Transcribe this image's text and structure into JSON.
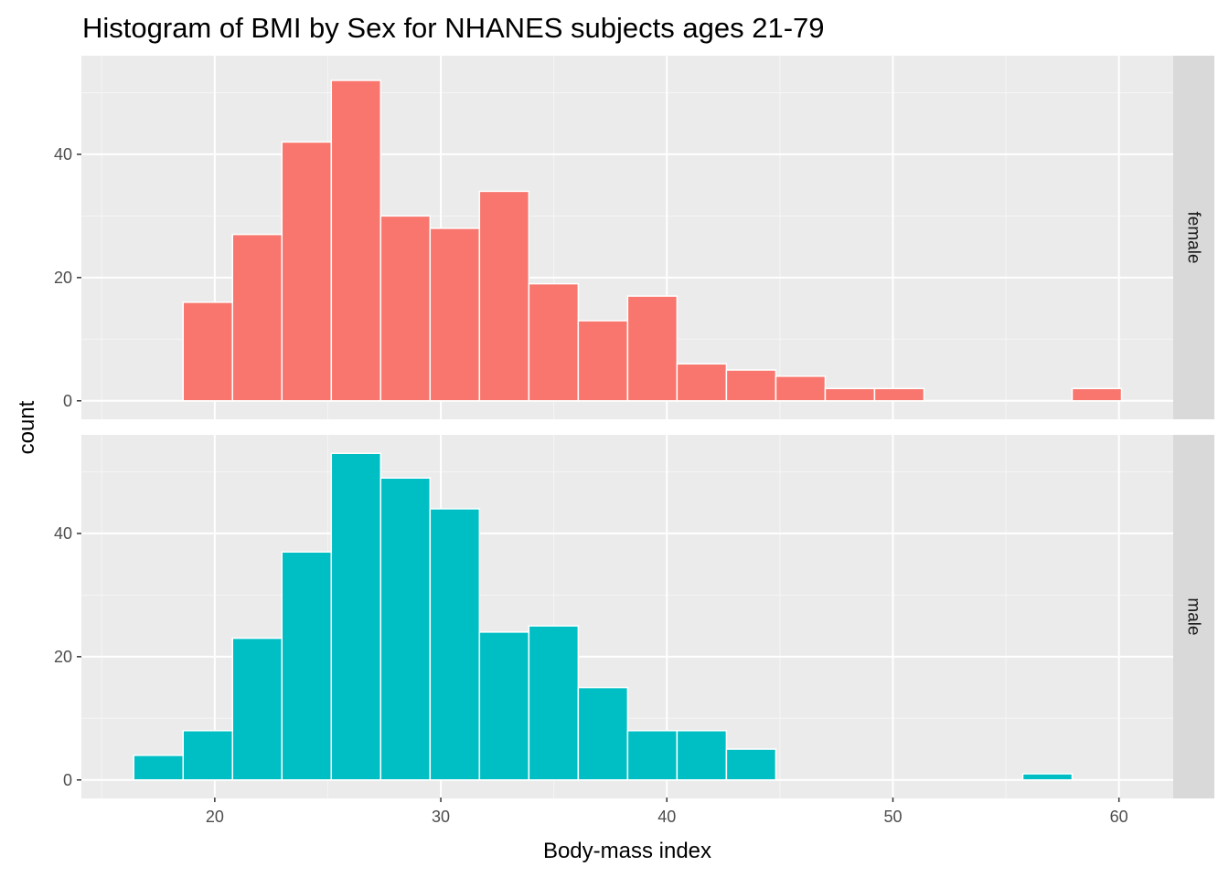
{
  "chart_data": {
    "type": "bar",
    "title": "Histogram of BMI by Sex for NHANES subjects ages 21-79",
    "xlabel": "Body-mass index",
    "ylabel": "count",
    "xlim": [
      14.1,
      62.4
    ],
    "ylim": [
      -3,
      56
    ],
    "x_ticks": [
      20,
      30,
      40,
      50,
      60
    ],
    "y_ticks": [
      0,
      20,
      40
    ],
    "bin_width": 2.185,
    "grid": true,
    "facets": [
      {
        "name": "female",
        "color": "#F8766D",
        "bins": [
          {
            "x0": 18.6,
            "count": 16
          },
          {
            "x0": 20.785,
            "count": 27
          },
          {
            "x0": 22.97,
            "count": 42
          },
          {
            "x0": 25.155,
            "count": 52
          },
          {
            "x0": 27.34,
            "count": 30
          },
          {
            "x0": 29.525,
            "count": 28
          },
          {
            "x0": 31.71,
            "count": 34
          },
          {
            "x0": 33.895,
            "count": 19
          },
          {
            "x0": 36.08,
            "count": 13
          },
          {
            "x0": 38.265,
            "count": 17
          },
          {
            "x0": 40.45,
            "count": 6
          },
          {
            "x0": 42.635,
            "count": 5
          },
          {
            "x0": 44.82,
            "count": 4
          },
          {
            "x0": 47.005,
            "count": 2
          },
          {
            "x0": 49.19,
            "count": 2
          },
          {
            "x0": 51.375,
            "count": 0
          },
          {
            "x0": 53.56,
            "count": 0
          },
          {
            "x0": 55.745,
            "count": 0
          },
          {
            "x0": 57.93,
            "count": 2
          }
        ]
      },
      {
        "name": "male",
        "color": "#00BFC4",
        "bins": [
          {
            "x0": 16.415,
            "count": 4
          },
          {
            "x0": 18.6,
            "count": 8
          },
          {
            "x0": 20.785,
            "count": 23
          },
          {
            "x0": 22.97,
            "count": 37
          },
          {
            "x0": 25.155,
            "count": 53
          },
          {
            "x0": 27.34,
            "count": 49
          },
          {
            "x0": 29.525,
            "count": 44
          },
          {
            "x0": 31.71,
            "count": 24
          },
          {
            "x0": 33.895,
            "count": 25
          },
          {
            "x0": 36.08,
            "count": 15
          },
          {
            "x0": 38.265,
            "count": 8
          },
          {
            "x0": 40.45,
            "count": 8
          },
          {
            "x0": 42.635,
            "count": 5
          },
          {
            "x0": 44.82,
            "count": 0
          },
          {
            "x0": 47.005,
            "count": 0
          },
          {
            "x0": 49.19,
            "count": 0
          },
          {
            "x0": 51.375,
            "count": 0
          },
          {
            "x0": 53.56,
            "count": 0
          },
          {
            "x0": 55.745,
            "count": 1
          }
        ]
      }
    ]
  },
  "theme": {
    "panel_background": "#EBEBEB",
    "grid_major": "#FFFFFF",
    "grid_minor": "#F5F5F5",
    "strip_background": "#D9D9D9",
    "bar_outline": "#FFFFFF",
    "tick_color": "#333333"
  }
}
